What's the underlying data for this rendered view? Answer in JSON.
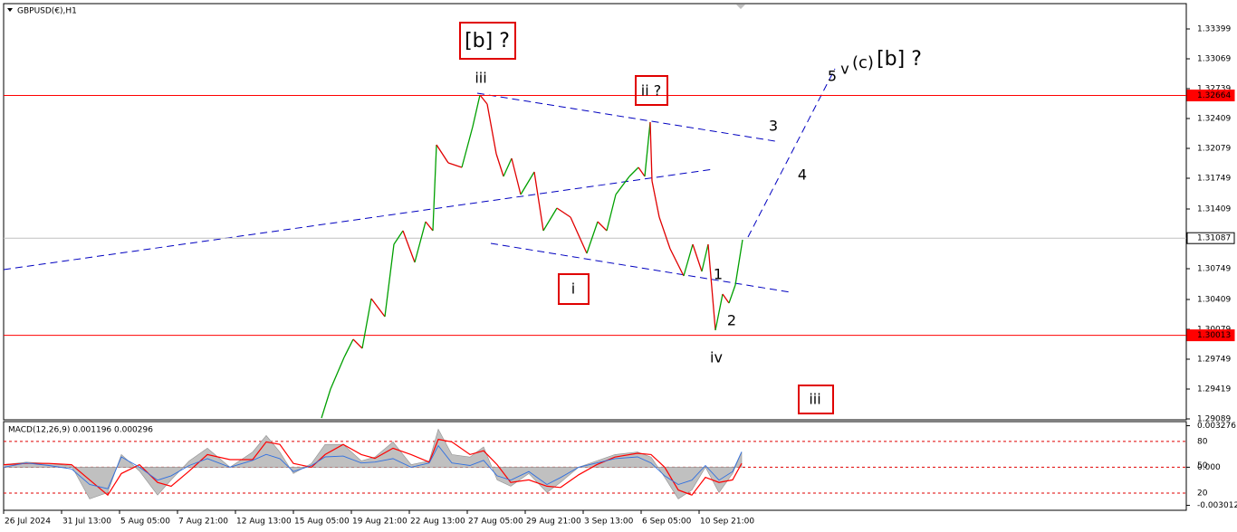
{
  "header": {
    "symbol": "GBPUSD(€),H1"
  },
  "chart_data": [
    {
      "type": "price",
      "xlim": [
        0,
        1306
      ],
      "ylim": [
        1.29079,
        1.33679
      ],
      "yticks": [
        1.33399,
        1.33069,
        1.32739,
        1.32409,
        1.32079,
        1.31749,
        1.31409,
        1.30749,
        1.30409,
        1.30079,
        1.29749,
        1.29419,
        1.29089
      ],
      "xticks": [
        {
          "value": 0,
          "label": "26 Jul 2024"
        },
        {
          "value": 64,
          "label": "31 Jul 13:00"
        },
        {
          "value": 128,
          "label": "5 Aug 05:00"
        },
        {
          "value": 192,
          "label": "7 Aug 21:00"
        },
        {
          "value": 256,
          "label": "12 Aug 13:00"
        },
        {
          "value": 320,
          "label": "15 Aug 05:00"
        },
        {
          "value": 384,
          "label": "19 Aug 21:00"
        },
        {
          "value": 448,
          "label": "22 Aug 13:00"
        },
        {
          "value": 512,
          "label": "27 Aug 05:00"
        },
        {
          "value": 576,
          "label": "29 Aug 21:00"
        },
        {
          "value": 640,
          "label": "3 Sep 13:00"
        },
        {
          "value": 704,
          "label": "6 Sep 05:00"
        },
        {
          "value": 768,
          "label": "10 Sep 21:00"
        }
      ],
      "x": [
        351,
        361,
        376,
        386,
        396,
        406,
        421,
        431,
        441,
        454,
        466,
        474,
        478,
        491,
        506,
        518,
        526,
        534,
        544,
        552,
        561,
        571,
        586,
        596,
        611,
        626,
        644,
        656,
        666,
        676,
        691,
        701,
        708,
        714,
        716,
        724,
        736,
        751,
        761,
        771,
        778,
        786,
        794,
        801,
        808,
        816
      ],
      "values": [
        1.29099,
        1.29419,
        1.29769,
        1.29969,
        1.29869,
        1.30419,
        1.30219,
        1.31019,
        1.31169,
        1.30819,
        1.31269,
        1.31169,
        1.32119,
        1.31919,
        1.31869,
        1.32319,
        1.32669,
        1.32569,
        1.32019,
        1.31769,
        1.31969,
        1.31569,
        1.31819,
        1.31169,
        1.31419,
        1.31319,
        1.30919,
        1.31269,
        1.31169,
        1.31569,
        1.31769,
        1.31869,
        1.31769,
        1.32369,
        1.31719,
        1.31319,
        1.30969,
        1.30669,
        1.31019,
        1.30719,
        1.31019,
        1.30069,
        1.30469,
        1.30369,
        1.30569,
        1.31069
      ],
      "color_up": "#00a000",
      "color_down": "#e00000",
      "hlines": [
        {
          "value": 1.32664,
          "color": "#ff0000",
          "label_color": "#ffffff"
        },
        {
          "value": 1.31087,
          "color": "#c0c0c0",
          "label_color": "#000000"
        },
        {
          "value": 1.30013,
          "color": "#ff0000",
          "label_color": "#ffffff"
        }
      ],
      "annotations": [
        {
          "text": "[b] ?",
          "color": "#008000",
          "boxed": true
        },
        {
          "text": "iii",
          "color": "#e020e0",
          "boxed": false
        },
        {
          "text": "ii ?",
          "color": "#e020e0",
          "boxed": true
        },
        {
          "text": "i",
          "color": "#e020e0",
          "boxed": true
        },
        {
          "text": "iv",
          "color": "#e020e0",
          "boxed": false
        },
        {
          "text": "iii",
          "color": "#e020e0",
          "boxed": true
        },
        {
          "text": "1",
          "color": "#000000",
          "boxed": false
        },
        {
          "text": "2",
          "color": "#000000",
          "boxed": false
        },
        {
          "text": "3",
          "color": "#000000",
          "boxed": false
        },
        {
          "text": "4",
          "color": "#000000",
          "boxed": false
        },
        {
          "text": "5",
          "color": "#000000",
          "boxed": false
        },
        {
          "text": "v",
          "color": "#e020e0",
          "boxed": false
        },
        {
          "text": "(c)",
          "color": "#0000c0",
          "boxed": false
        },
        {
          "text": "[b] ?",
          "color": "#008000",
          "boxed": false
        }
      ]
    },
    {
      "type": "macd",
      "title": "MACD(12,26,9) 0.001196 0.000296",
      "xlim": [
        0,
        1306
      ],
      "ylim": [
        -0.0034,
        0.0036
      ],
      "yticks": [
        0.003276,
        {
          "value": 0,
          "label": "0.000"
        },
        -0.003012
      ],
      "y2lim": [
        0,
        103
      ],
      "y2ticks": [
        80,
        50,
        20
      ],
      "x": [
        0,
        25,
        50,
        75,
        95,
        115,
        130,
        150,
        170,
        185,
        205,
        225,
        250,
        275,
        290,
        305,
        320,
        340,
        355,
        375,
        395,
        410,
        430,
        450,
        470,
        480,
        495,
        515,
        530,
        545,
        560,
        580,
        600,
        615,
        635,
        655,
        675,
        700,
        715,
        730,
        745,
        760,
        775,
        790,
        805,
        815
      ],
      "series": [
        {
          "color": "#c0c0c0",
          "values": [
            0.0002,
            0.0004,
            0.0003,
            0.0001,
            -0.0025,
            -0.002,
            0.001,
            -0.0003,
            -0.0022,
            -0.001,
            0.0005,
            0.0015,
            0.0,
            0.0012,
            0.0025,
            0.0012,
            -0.0005,
            0.0003,
            0.0018,
            0.0018,
            0.0005,
            0.0008,
            0.002,
            0.0002,
            0.0005,
            0.003,
            0.001,
            0.0008,
            0.0016,
            -0.001,
            -0.0015,
            -0.0005,
            -0.002,
            -0.0012,
            0.0,
            0.0005,
            0.001,
            0.0012,
            0.0008,
            -0.0008,
            -0.0025,
            -0.0018,
            0.0,
            -0.002,
            -0.0005,
            0.0012
          ]
        },
        {
          "color": "#ff0000",
          "values": [
            0.0002,
            0.0003,
            0.0003,
            0.0002,
            -0.001,
            -0.0022,
            -0.0005,
            0.0002,
            -0.0012,
            -0.0015,
            -0.0003,
            0.001,
            0.0006,
            0.0006,
            0.002,
            0.0018,
            0.0003,
            0.0,
            0.001,
            0.0018,
            0.001,
            0.0007,
            0.0015,
            0.001,
            0.0004,
            0.0022,
            0.002,
            0.001,
            0.0013,
            0.0002,
            -0.0012,
            -0.001,
            -0.0015,
            -0.0016,
            -0.0006,
            0.0002,
            0.0008,
            0.0011,
            0.001,
            0.0,
            -0.0018,
            -0.0022,
            -0.0008,
            -0.0012,
            -0.001,
            0.0003
          ]
        },
        {
          "color": "#3070e0",
          "axis": "y2",
          "values": [
            50,
            55,
            52,
            48,
            30,
            25,
            62,
            50,
            35,
            40,
            52,
            60,
            50,
            58,
            65,
            60,
            45,
            52,
            62,
            63,
            55,
            56,
            60,
            50,
            55,
            75,
            55,
            52,
            58,
            40,
            35,
            45,
            30,
            38,
            50,
            55,
            60,
            62,
            55,
            40,
            30,
            35,
            52,
            35,
            45,
            68
          ]
        }
      ]
    }
  ]
}
